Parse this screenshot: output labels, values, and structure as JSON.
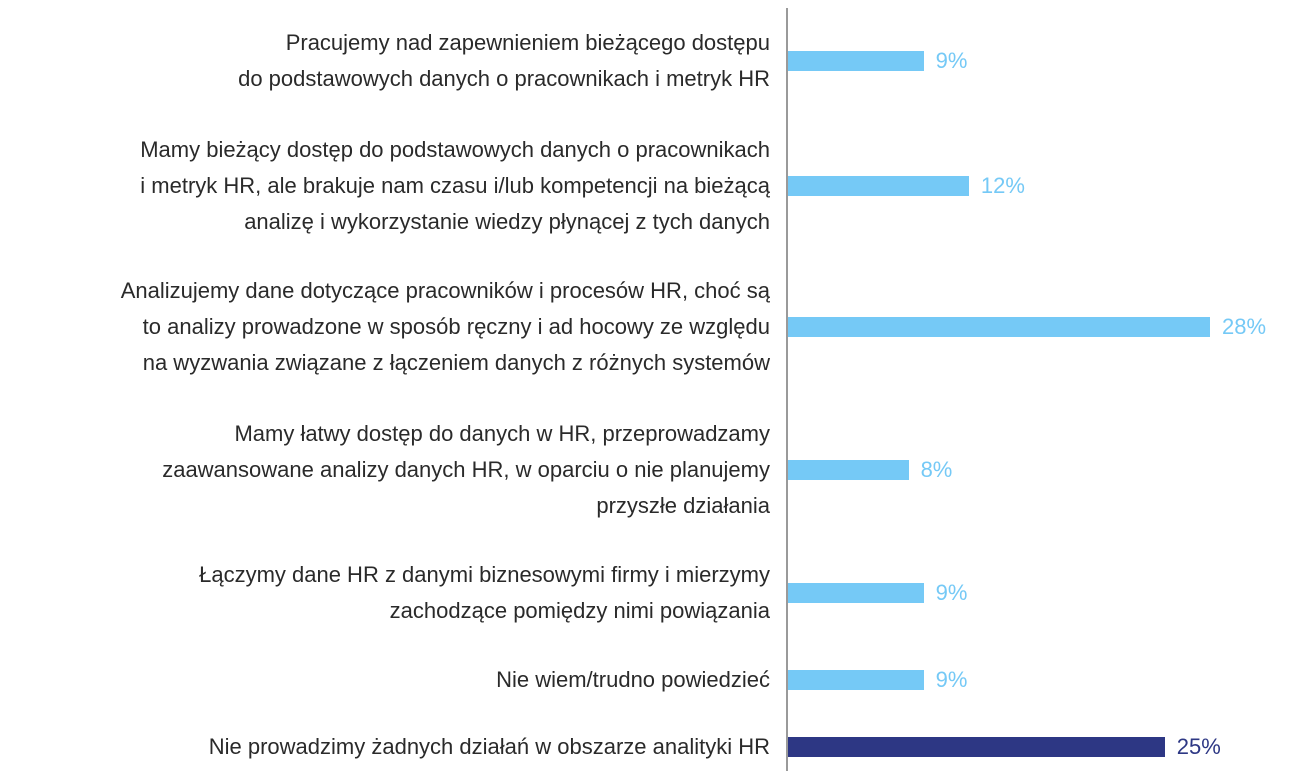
{
  "chart_data": {
    "type": "barh",
    "categories": [
      "Pracujemy nad zapewnieniem bieżącego dostępu\ndo podstawowych danych o pracownikach i metryk HR",
      "Mamy bieżący dostęp do podstawowych danych o pracownikach\ni metryk HR, ale brakuje nam czasu i/lub kompetencji na bieżącą\nanalizę i wykorzystanie wiedzy płynącej z tych danych",
      "Analizujemy dane dotyczące pracowników i procesów HR, choć są\nto analizy prowadzone w sposób ręczny i ad hocowy ze względu\nna wyzwania związane z łączeniem danych z różnych systemów",
      "Mamy łatwy dostęp do danych w HR, przeprowadzamy\nzaawansowane analizy danych HR, w oparciu o nie planujemy\nprzyszłe działania",
      "Łączymy dane HR z danymi biznesowymi firmy i mierzymy\nzachodzące pomiędzy nimi powiązania",
      "Nie wiem/trudno powiedzieć",
      "Nie prowadzimy żadnych działań w obszarze analityki HR"
    ],
    "values": [
      9,
      12,
      28,
      8,
      9,
      9,
      25
    ],
    "value_labels": [
      "9%",
      "12%",
      "28%",
      "8%",
      "9%",
      "9%",
      "25%"
    ],
    "colors": [
      "#75c9f6",
      "#75c9f6",
      "#75c9f6",
      "#75c9f6",
      "#75c9f6",
      "#75c9f6",
      "#2d3784"
    ]
  }
}
